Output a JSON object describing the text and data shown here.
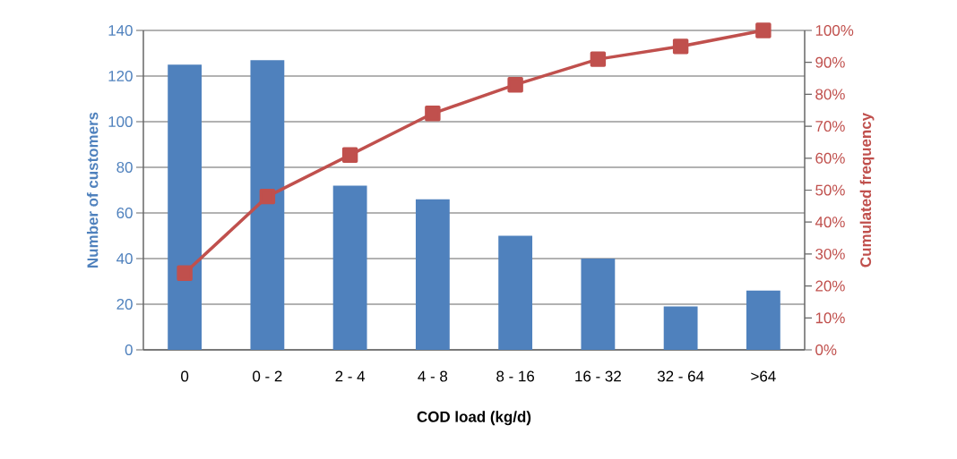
{
  "chart_data": {
    "type": "bar",
    "xlabel": "COD load (kg/d)",
    "ylabel": "Number of customers",
    "y2label": "Cumulated frequency",
    "categories": [
      "0",
      "0 - 2",
      "2 - 4",
      "4 - 8",
      "8 - 16",
      "16 - 32",
      "32 - 64",
      ">64"
    ],
    "series": [
      {
        "color": "#4f81bd",
        "values": [
          125,
          127,
          72,
          66,
          50,
          40,
          19,
          26
        ]
      },
      {
        "type": "line",
        "axis": "y2",
        "color": "#c0504d",
        "marker": "square",
        "line_style": "solid",
        "values": [
          24,
          48,
          61,
          74,
          83,
          91,
          95,
          100
        ]
      }
    ],
    "ylim": [
      0,
      140
    ],
    "yticks": [
      0,
      20,
      40,
      60,
      80,
      100,
      120,
      140
    ],
    "y2lim": [
      0,
      100
    ],
    "y2ticks": [
      {
        "value": 0,
        "label": "0%"
      },
      {
        "value": 10,
        "label": "10%"
      },
      {
        "value": 20,
        "label": "20%"
      },
      {
        "value": 30,
        "label": "30%"
      },
      {
        "value": 40,
        "label": "40%"
      },
      {
        "value": 50,
        "label": "50%"
      },
      {
        "value": 60,
        "label": "60%"
      },
      {
        "value": 70,
        "label": "70%"
      },
      {
        "value": 80,
        "label": "80%"
      },
      {
        "value": 90,
        "label": "90%"
      },
      {
        "value": 100,
        "label": "100%"
      }
    ],
    "grid": "y",
    "legend": false
  }
}
